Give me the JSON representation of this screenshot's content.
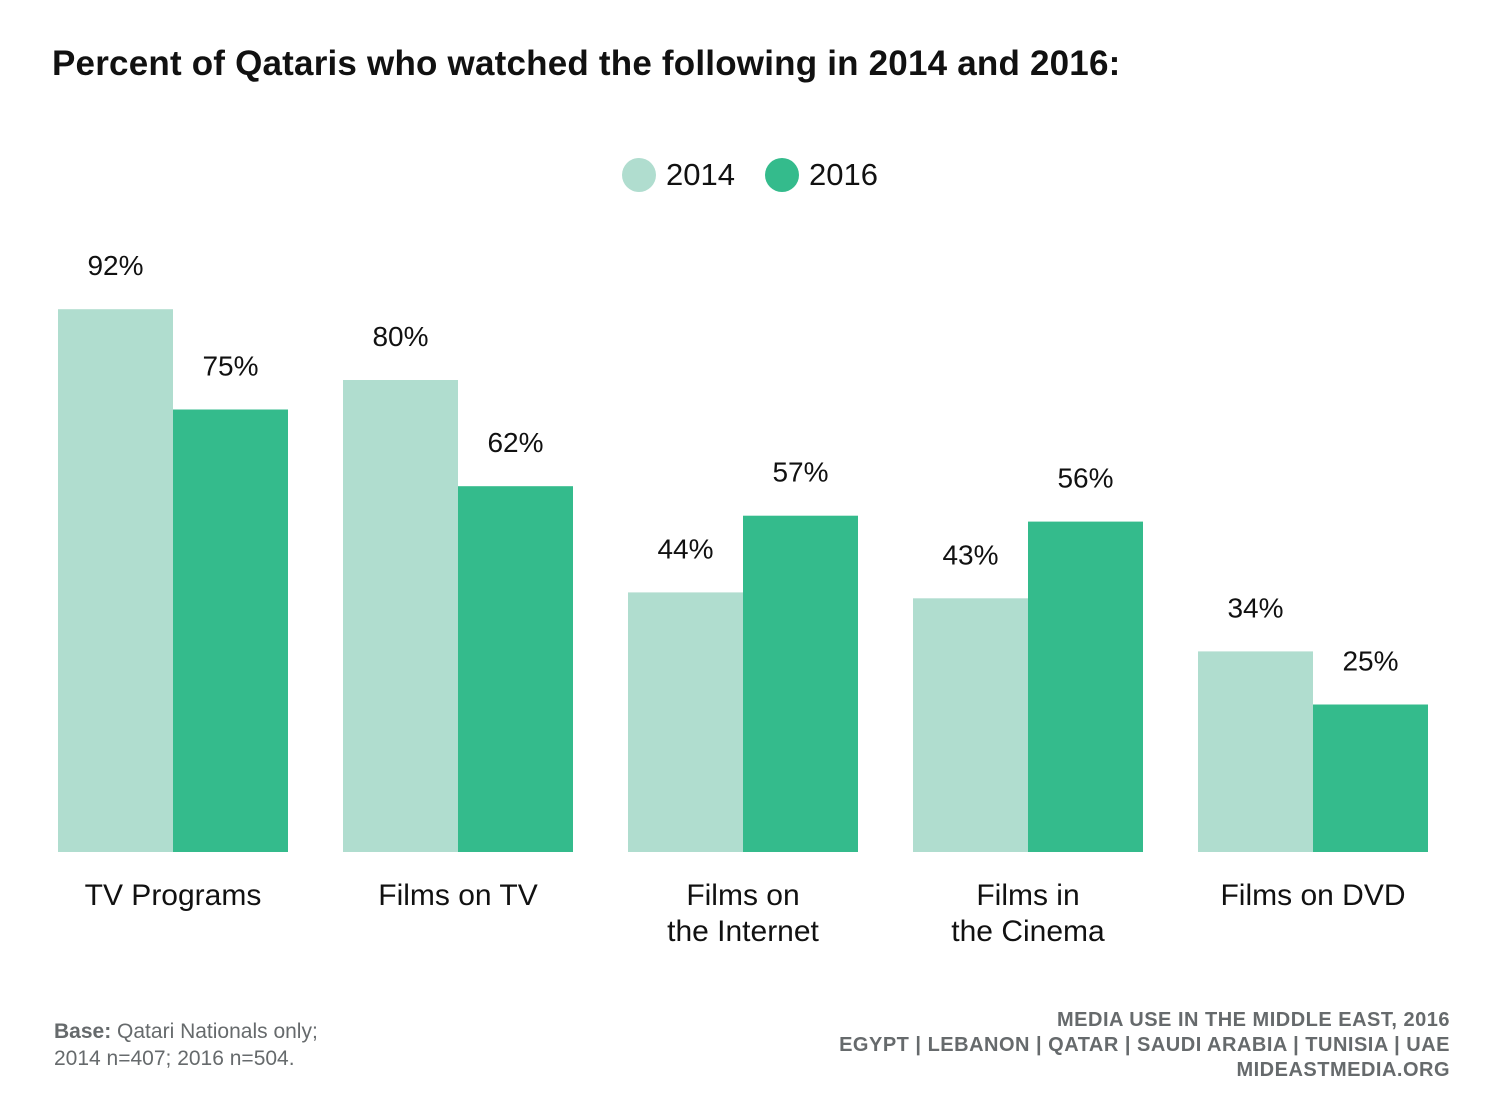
{
  "header": {
    "title": "Percent of Qataris who watched the following in 2014 and 2016:"
  },
  "colors": {
    "series_2014": "#b0ddcf",
    "series_2016": "#34bb8c",
    "text": "#111111",
    "footer_text": "#666a6c"
  },
  "chart_data": {
    "type": "bar",
    "title": "Percent of Qataris who watched the following in 2014 and 2016:",
    "categories": [
      "TV Programs",
      "Films on TV",
      "Films on\nthe Internet",
      "Films in\nthe Cinema",
      "Films on DVD"
    ],
    "series": [
      {
        "name": "2014",
        "values": [
          92,
          80,
          44,
          43,
          34
        ],
        "labels": [
          "92%",
          "80%",
          "44%",
          "43%",
          "34%"
        ]
      },
      {
        "name": "2016",
        "values": [
          75,
          62,
          57,
          56,
          25
        ],
        "labels": [
          "75%",
          "62%",
          "57%",
          "56%",
          "25%"
        ]
      }
    ],
    "ylim": [
      0,
      100
    ],
    "grid": false,
    "legend_position": "top-center"
  },
  "footer": {
    "base_label": "Base:",
    "base_text": "Qatari Nationals only;",
    "sample_text": "2014 n=407; 2016 n=504.",
    "source_line1": "MEDIA USE IN THE MIDDLE EAST, 2016",
    "source_line2": "EGYPT | LEBANON | QATAR | SAUDI ARABIA | TUNISIA | UAE",
    "source_line3": "MIDEASTMEDIA.ORG"
  }
}
